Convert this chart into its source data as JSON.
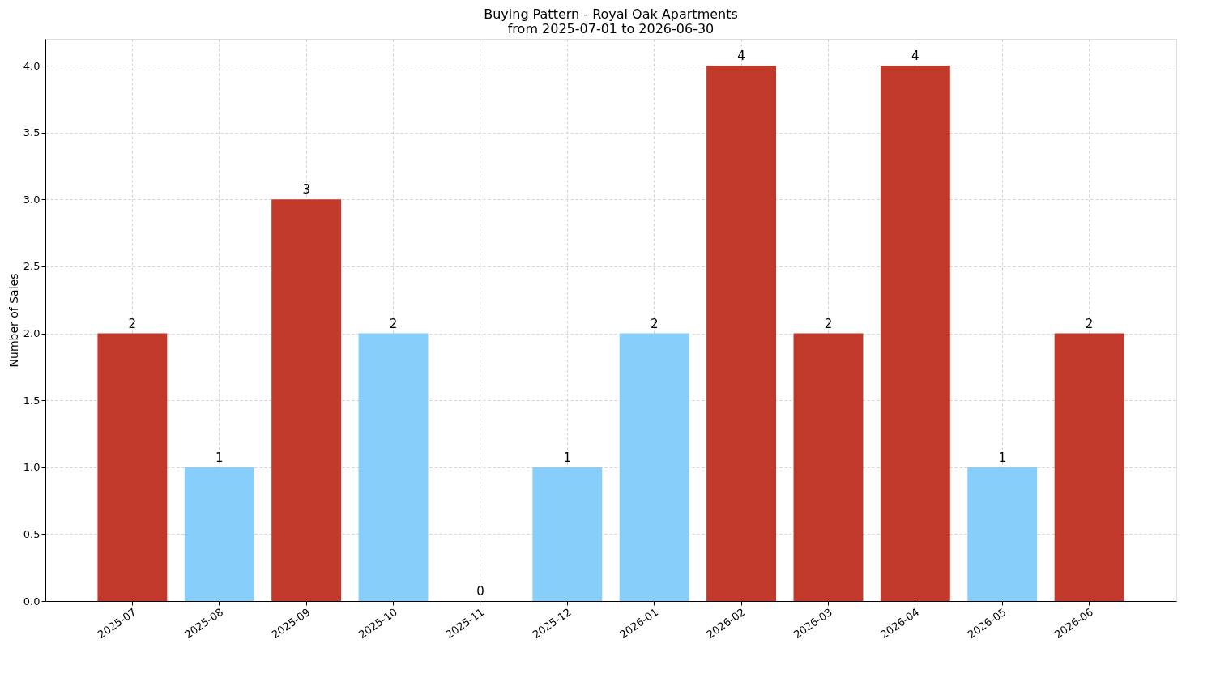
{
  "chart_data": {
    "type": "bar",
    "title": "Buying Pattern - Royal Oak Apartments\nfrom 2025-07-01 to 2026-06-30",
    "ylabel": "Number of Sales",
    "categories": [
      "2025-07",
      "2025-08",
      "2025-09",
      "2025-10",
      "2025-11",
      "2025-12",
      "2026-01",
      "2026-02",
      "2026-03",
      "2026-04",
      "2026-05",
      "2026-06"
    ],
    "values": [
      2,
      1,
      3,
      2,
      0,
      1,
      2,
      4,
      2,
      4,
      1,
      2
    ],
    "colors": [
      "#c0392b",
      "#87cefa",
      "#c0392b",
      "#87cefa",
      "#87cefa",
      "#87cefa",
      "#87cefa",
      "#c0392b",
      "#c0392b",
      "#c0392b",
      "#87cefa",
      "#c0392b"
    ],
    "ylim": [
      0,
      4.2
    ],
    "yticks": [
      {
        "value": 0,
        "label": "0.0"
      },
      {
        "value": 0.5,
        "label": "0.5"
      },
      {
        "value": 1,
        "label": "1.0"
      },
      {
        "value": 1.5,
        "label": "1.5"
      },
      {
        "value": 2,
        "label": "2.0"
      },
      {
        "value": 2.5,
        "label": "2.5"
      },
      {
        "value": 3,
        "label": "3.0"
      },
      {
        "value": 3.5,
        "label": "3.5"
      },
      {
        "value": 4,
        "label": "4.0"
      }
    ],
    "grid": true,
    "data_labels": true
  }
}
